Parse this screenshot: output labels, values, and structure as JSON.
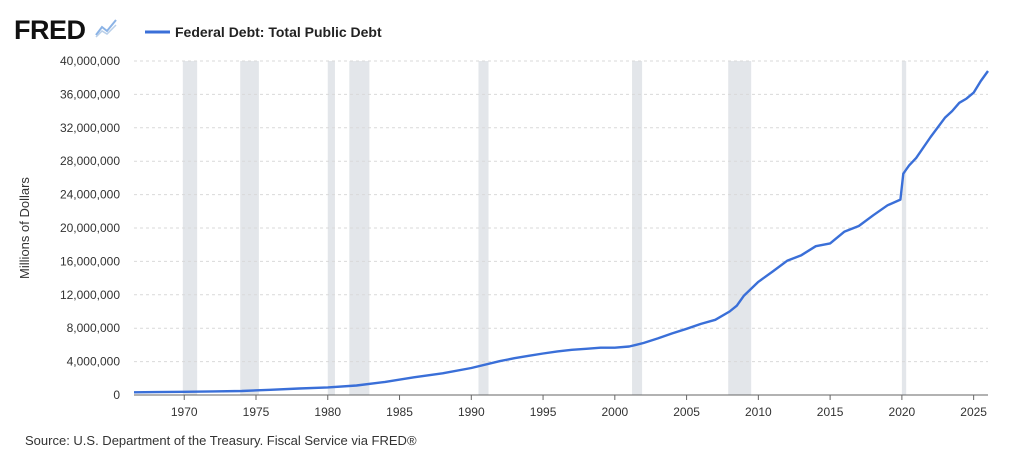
{
  "header": {
    "logo_text": "FRED",
    "legend_label": "Federal Debt: Total Public Debt"
  },
  "source": "Source: U.S. Department of the Treasury. Fiscal Service via FRED®",
  "colors": {
    "line": "#3a6fd8",
    "grid": "#d9d9d9",
    "recession": "#e3e6ea",
    "text": "#333333",
    "axis": "#666666"
  },
  "chart_data": {
    "type": "line",
    "title": "",
    "xlabel": "",
    "ylabel": "Millions of Dollars",
    "xlim": [
      1966.5,
      2026.0
    ],
    "ylim": [
      0,
      40000000
    ],
    "grid": true,
    "legend": "top-left",
    "x_ticks": [
      1970,
      1975,
      1980,
      1985,
      1990,
      1995,
      2000,
      2005,
      2010,
      2015,
      2020,
      2025
    ],
    "y_ticks": [
      0,
      4000000,
      8000000,
      12000000,
      16000000,
      20000000,
      24000000,
      28000000,
      32000000,
      36000000,
      40000000
    ],
    "y_tick_labels": [
      "0",
      "4,000,000",
      "8,000,000",
      "12,000,000",
      "16,000,000",
      "20,000,000",
      "24,000,000",
      "28,000,000",
      "32,000,000",
      "36,000,000",
      "40,000,000"
    ],
    "recessions": [
      [
        1969.9,
        1970.9
      ],
      [
        1973.9,
        1975.2
      ],
      [
        1980.0,
        1980.5
      ],
      [
        1981.5,
        1982.9
      ],
      [
        1990.5,
        1991.2
      ],
      [
        2001.2,
        2001.9
      ],
      [
        2007.9,
        2009.5
      ],
      [
        2020.0,
        2020.3
      ]
    ],
    "series": [
      {
        "name": "Federal Debt: Total Public Debt",
        "x": [
          1966.5,
          1968,
          1970,
          1972,
          1974,
          1976,
          1978,
          1980,
          1982,
          1984,
          1986,
          1988,
          1990,
          1992,
          1993,
          1994,
          1995,
          1996,
          1997,
          1998,
          1999,
          2000,
          2001,
          2002,
          2003,
          2004,
          2005,
          2006,
          2007,
          2008,
          2008.5,
          2009,
          2010,
          2011,
          2012,
          2013,
          2014,
          2015,
          2016,
          2017,
          2018,
          2019,
          2019.9,
          2020.1,
          2020.3,
          2020.5,
          2021,
          2022,
          2023,
          2023.5,
          2024,
          2024.5,
          2025,
          2025.5,
          2026
        ],
        "y": [
          320000,
          350000,
          380000,
          430000,
          480000,
          620000,
          780000,
          910000,
          1140000,
          1570000,
          2120000,
          2600000,
          3230000,
          4060000,
          4410000,
          4690000,
          4970000,
          5220000,
          5410000,
          5530000,
          5660000,
          5670000,
          5810000,
          6230000,
          6780000,
          7380000,
          7930000,
          8510000,
          9010000,
          10000000,
          10700000,
          11900000,
          13560000,
          14790000,
          16070000,
          16740000,
          17820000,
          18150000,
          19570000,
          20240000,
          21520000,
          22720000,
          23400000,
          26500000,
          27000000,
          27500000,
          28400000,
          30900000,
          33200000,
          34000000,
          35000000,
          35500000,
          36200000,
          37600000,
          38800000
        ]
      }
    ]
  }
}
